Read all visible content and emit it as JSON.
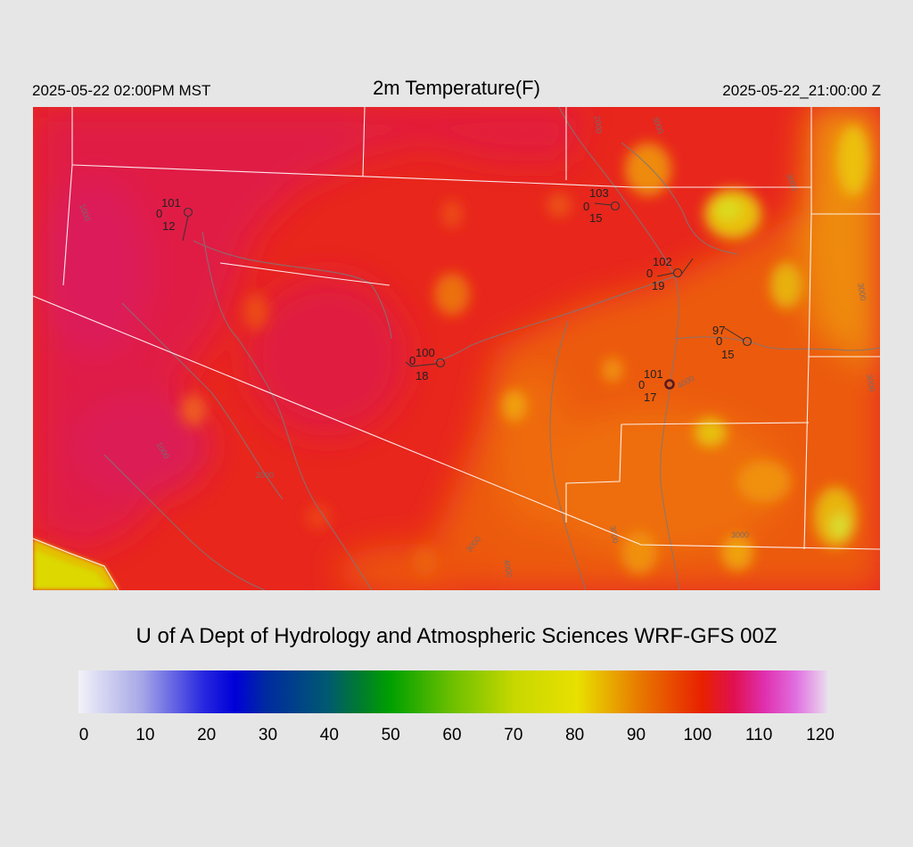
{
  "header": {
    "valid_local": "2025-05-22 02:00PM MST",
    "title": "2m Temperature(F)",
    "valid_utc": "2025-05-22_21:00:00 Z"
  },
  "credit": "U of A Dept of Hydrology and Atmospheric Sciences WRF-GFS 00Z",
  "colorbar": {
    "ticks": [
      "0",
      "10",
      "20",
      "30",
      "40",
      "50",
      "60",
      "70",
      "80",
      "90",
      "100",
      "110",
      "120"
    ],
    "stops": [
      {
        "value": 0,
        "color": "#f2f2f8"
      },
      {
        "value": 10,
        "color": "#a8a8e8"
      },
      {
        "value": 20,
        "color": "#2828e0"
      },
      {
        "value": 25,
        "color": "#0000d8"
      },
      {
        "value": 30,
        "color": "#002aa0"
      },
      {
        "value": 40,
        "color": "#005a70"
      },
      {
        "value": 45,
        "color": "#007a30"
      },
      {
        "value": 50,
        "color": "#00a000"
      },
      {
        "value": 60,
        "color": "#6ec000"
      },
      {
        "value": 70,
        "color": "#c8d800"
      },
      {
        "value": 80,
        "color": "#e8e000"
      },
      {
        "value": 90,
        "color": "#e87800"
      },
      {
        "value": 100,
        "color": "#e82000"
      },
      {
        "value": 105,
        "color": "#e01050"
      },
      {
        "value": 110,
        "color": "#e030b0"
      },
      {
        "value": 115,
        "color": "#e070e0"
      },
      {
        "value": 120,
        "color": "#eadcee"
      }
    ]
  },
  "map": {
    "contour_labels": [
      "1000",
      "1000",
      "2000",
      "2000",
      "3000",
      "3000",
      "3000",
      "4000",
      "3000",
      "4000",
      "3000",
      "3000",
      "3000"
    ],
    "stations": [
      {
        "name": "station-1",
        "temp": "101",
        "val": "0",
        "dew": "12"
      },
      {
        "name": "station-2",
        "temp": "103",
        "val": "0",
        "dew": "15"
      },
      {
        "name": "station-3",
        "temp": "102",
        "val": "0",
        "dew": "19"
      },
      {
        "name": "station-4",
        "temp": "97",
        "val": "0",
        "dew": "15"
      },
      {
        "name": "station-5",
        "temp": "100",
        "val": "0",
        "dew": "18"
      },
      {
        "name": "station-6",
        "temp": "101",
        "val": "0",
        "dew": "17"
      }
    ]
  }
}
